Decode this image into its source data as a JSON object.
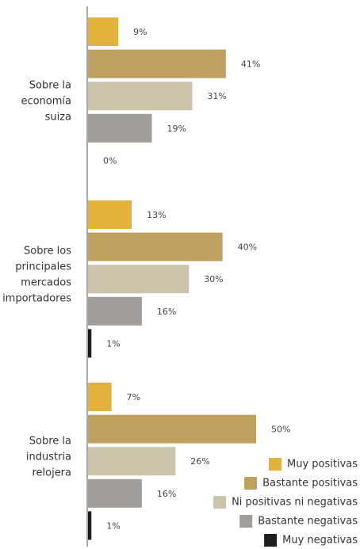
{
  "chart_data": {
    "type": "bar",
    "orientation": "horizontal",
    "categories": [
      [
        "Sobre la",
        "economía",
        "suiza"
      ],
      [
        "Sobre los",
        "principales",
        "mercados",
        "importadores"
      ],
      [
        "Sobre la",
        "industria",
        "relojera"
      ]
    ],
    "series": [
      {
        "name": "Muy positivas",
        "color": "#E3B23C",
        "values": [
          9,
          13,
          7
        ]
      },
      {
        "name": "Bastante positivas",
        "color": "#BFA15F",
        "values": [
          41,
          40,
          50
        ]
      },
      {
        "name": "Ni positivas ni negativas",
        "color": "#CCC3AC",
        "values": [
          31,
          30,
          26
        ]
      },
      {
        "name": "Bastante negativas",
        "color": "#A09E9B",
        "values": [
          19,
          16,
          16
        ]
      },
      {
        "name": "Muy negativas",
        "color": "#1E1E1E",
        "values": [
          0,
          1,
          1
        ]
      }
    ],
    "value_suffix": "%",
    "legend_position": "bottom-right",
    "grid": false
  }
}
